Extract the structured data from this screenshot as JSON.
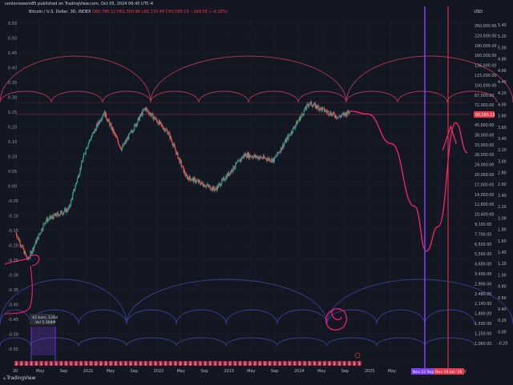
{
  "header": {
    "publisher": "conlonlowem85 published on TradingView.com, Oct 05, 2024 06:45 UTC-4"
  },
  "legend": {
    "symbol": "Bitcoin / U.S. Dollar, 3D, INDEX",
    "ohlc": "O60,786.11 H61,500.86 L60,170.49 C60,585.13 −169.05 (−0.28%)"
  },
  "price_axis": {
    "currency": "USD",
    "current_price": "60,585.13",
    "labels": [
      "260,000.00",
      "220,000.00",
      "190,000.00",
      "160,000.00",
      "136,000.00",
      "115,000.00",
      "100,000.00",
      "87,000.00",
      "72,000.00",
      "53,000.00",
      "45,000.00",
      "38,000.00",
      "33,000.00",
      "28,000.00",
      "24,000.00",
      "20,000.00",
      "17,000.00",
      "14,000.00",
      "12,600.00",
      "10,400.00",
      "9,100.00",
      "7,700.00",
      "6,500.00",
      "5,500.00",
      "4,600.00",
      "3,400.00",
      "2,900.00",
      "2,480.00",
      "2,140.00",
      "1,800.00",
      "1,500.00",
      "1,250.00",
      "1,060.00"
    ]
  },
  "secondary_axis": {
    "labels": [
      "5.40",
      "5.20",
      "5.00",
      "4.80",
      "4.60",
      "4.40",
      "4.20",
      "4.00",
      "3.80",
      "3.60",
      "3.40",
      "3.20",
      "3.00",
      "2.80",
      "2.60",
      "2.40",
      "2.20",
      "2.00",
      "1.80",
      "1.60",
      "1.40",
      "1.20",
      "1.00",
      "0.80",
      "0.60",
      "0.40",
      "0.20",
      "0.00",
      "-0.20"
    ]
  },
  "left_axis": {
    "labels": [
      "0.55",
      "0.50",
      "0.45",
      "0.40",
      "0.35",
      "0.30",
      "0.25",
      "0.20",
      "0.15",
      "0.10",
      "0.05",
      "0.00",
      "-0.05",
      "-0.10",
      "-0.15",
      "-0.20",
      "-0.25",
      "-0.30",
      "-0.35",
      "-0.40",
      "-0.45",
      "-0.50",
      "-0.55"
    ]
  },
  "time_axis": {
    "labels": [
      "20",
      "May",
      "Sep",
      "2021",
      "May",
      "Sep",
      "2022",
      "May",
      "Sep",
      "2023",
      "May",
      "Sep",
      "2024",
      "May",
      "Sep",
      "2025",
      "May",
      "Sep",
      "2026",
      "May"
    ]
  },
  "annotations": {
    "range_box_line1": "42 bars, 126d",
    "range_box_line2": "Vol 5.368M",
    "date_tag_1": "Nov 22 Sep '2",
    "date_tag_2": "Nov 19 Jan '26"
  },
  "colors": {
    "background": "#131722",
    "candle_up": "#26a69a",
    "candle_down": "#ef5350",
    "arc_red": "#b13658",
    "arc_blue": "#3c3f8a",
    "projection": "#ff1f73",
    "vertical_purple": "#7b3ff2",
    "vertical_red": "#e53950"
  },
  "footer": {
    "brand": "TradingView"
  },
  "chart_data": {
    "type": "candlestick",
    "title": "Bitcoin / U.S. Dollar, 3D, INDEX",
    "x_start": "2020-01",
    "x_end": "2026-06",
    "y_scale": "log",
    "y_unit": "USD",
    "ylim": [
      1000,
      300000
    ],
    "last_close": 60585.13,
    "price_path": [
      {
        "t": "2020-01",
        "p": 7600
      },
      {
        "t": "2020-03",
        "p": 4800
      },
      {
        "t": "2020-06",
        "p": 9400
      },
      {
        "t": "2020-10",
        "p": 11500
      },
      {
        "t": "2021-01",
        "p": 33000
      },
      {
        "t": "2021-04",
        "p": 60000
      },
      {
        "t": "2021-07",
        "p": 32000
      },
      {
        "t": "2021-11",
        "p": 64000
      },
      {
        "t": "2022-03",
        "p": 42000
      },
      {
        "t": "2022-06",
        "p": 20000
      },
      {
        "t": "2022-11",
        "p": 16000
      },
      {
        "t": "2023-04",
        "p": 29000
      },
      {
        "t": "2023-09",
        "p": 26500
      },
      {
        "t": "2023-12",
        "p": 43000
      },
      {
        "t": "2024-03",
        "p": 70000
      },
      {
        "t": "2024-08",
        "p": 55000
      },
      {
        "t": "2024-10",
        "p": 60585
      }
    ],
    "projection_path": [
      {
        "t": "2024-10",
        "p": 61000
      },
      {
        "t": "2025-01",
        "p": 58000
      },
      {
        "t": "2025-05",
        "p": 35000
      },
      {
        "t": "2025-09",
        "p": 12000
      },
      {
        "t": "2025-11",
        "p": 5600
      },
      {
        "t": "2026-01",
        "p": 8500
      },
      {
        "t": "2026-04",
        "p": 50000
      },
      {
        "t": "2026-06",
        "p": 30000
      }
    ],
    "vertical_markers": [
      "Nov 22 Sep '2",
      "Nov 19 Jan '26"
    ]
  }
}
